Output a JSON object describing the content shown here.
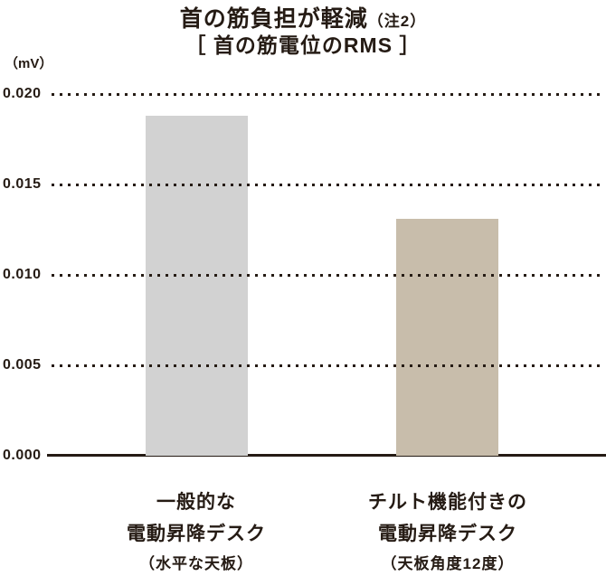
{
  "chart": {
    "title_main": "首の筋負担が軽減",
    "title_note": "（注2）",
    "subtitle": "［ 首の筋電位のRMS ］",
    "y_unit": "（mV）"
  },
  "chart_data": {
    "type": "bar",
    "title": "首の筋負担が軽減（注2）",
    "subtitle": "［ 首の筋電位のRMS ］",
    "xlabel": "",
    "ylabel": "（mV）",
    "ylim": [
      0,
      0.02
    ],
    "ytick_labels": [
      "0.020",
      "0.015",
      "0.010",
      "0.005",
      "0.000"
    ],
    "grid": "horizontal-dotted",
    "legend": "none",
    "categories": [
      {
        "line1": "一般的な",
        "line2": "電動昇降デスク",
        "line3": "（水平な天板）"
      },
      {
        "line1": "チルト機能付きの",
        "line2": "電動昇降デスク",
        "line3": "（天板角度12度）"
      }
    ],
    "values": [
      0.0188,
      0.0131
    ],
    "bar_colors": [
      "#d2d2d2",
      "#c8bdab"
    ],
    "ink_color": "#251b14"
  }
}
